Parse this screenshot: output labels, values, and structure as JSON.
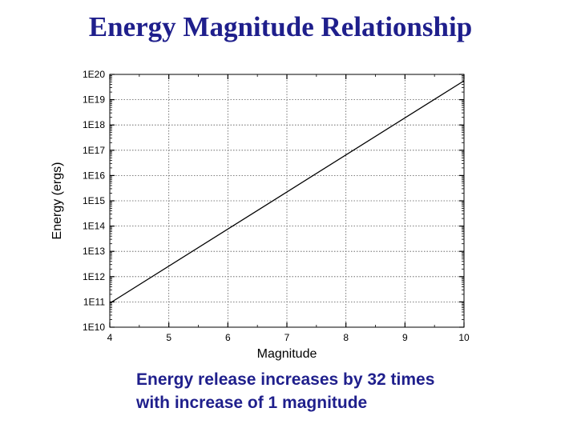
{
  "slide": {
    "title": "Energy Magnitude Relationship",
    "caption_lines": [
      "Energy release increases by 32 times",
      "with increase of 1 magnitude"
    ],
    "title_color": "#1f1f8c",
    "caption_color": "#1f1f8c"
  },
  "chart_data": {
    "type": "line",
    "title": "",
    "xlabel": "Magnitude",
    "ylabel": "Energy (ergs)",
    "xlim": [
      4,
      10
    ],
    "ylim": [
      10000000000.0,
      1e+20
    ],
    "yscale": "log",
    "grid": true,
    "x_ticks": [
      4,
      5,
      6,
      7,
      8,
      9,
      10
    ],
    "x_tick_labels": [
      "4",
      "5",
      "6",
      "7",
      "8",
      "9",
      "10"
    ],
    "y_ticks": [
      10000000000.0,
      100000000000.0,
      1000000000000.0,
      10000000000000.0,
      100000000000000.0,
      1000000000000000.0,
      1e+16,
      1e+17,
      1e+18,
      1e+19,
      1e+20
    ],
    "y_tick_labels": [
      "1E10",
      "1E11",
      "1E12",
      "1E13",
      "1E14",
      "1E15",
      "1E16",
      "1E17",
      "1E18",
      "1E19",
      "1E20"
    ],
    "series": [
      {
        "x": [
          4,
          10
        ],
        "y": [
          89000000000.0,
          5.6e+19
        ],
        "color": "#000000"
      }
    ]
  }
}
